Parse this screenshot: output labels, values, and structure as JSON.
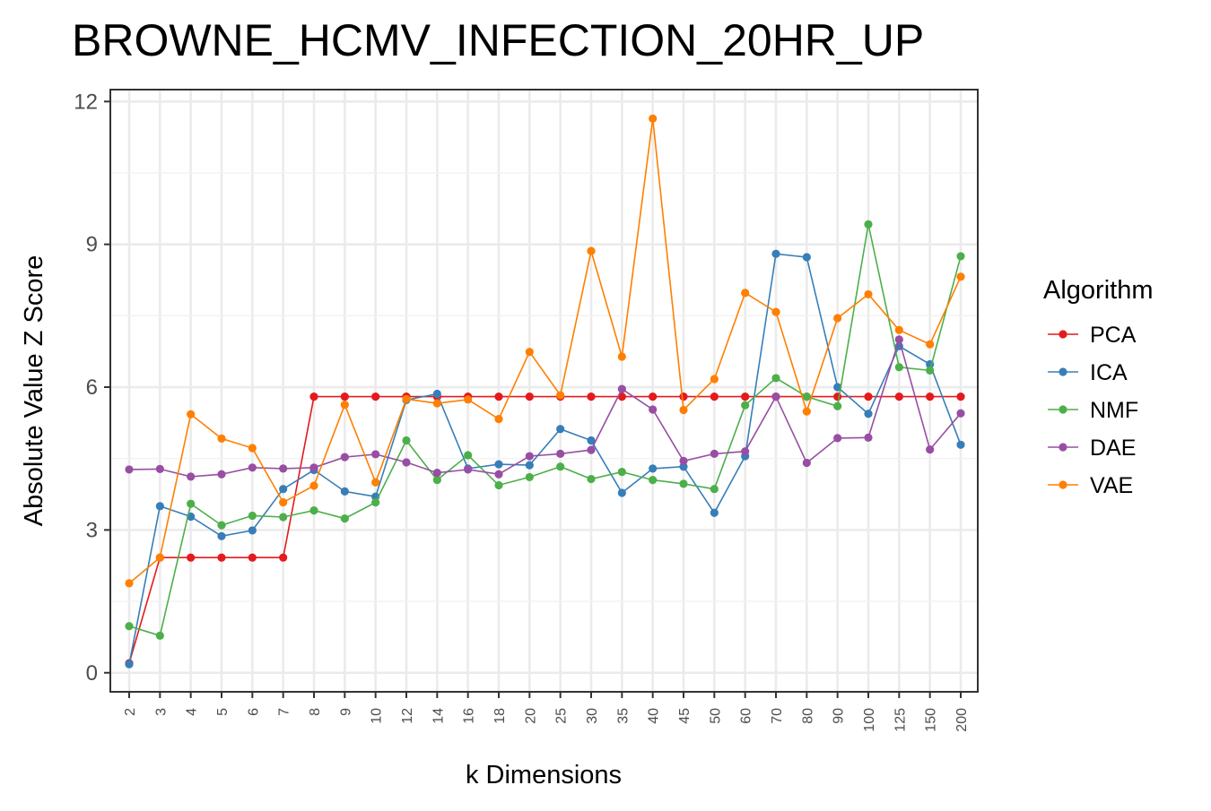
{
  "chart_data": {
    "type": "line",
    "title": "BROWNE_HCMV_INFECTION_20HR_UP",
    "xlabel": "k Dimensions",
    "ylabel": "Absolute Value Z Score",
    "categories": [
      "2",
      "3",
      "4",
      "5",
      "6",
      "7",
      "8",
      "9",
      "10",
      "12",
      "14",
      "16",
      "18",
      "20",
      "25",
      "30",
      "35",
      "40",
      "45",
      "50",
      "60",
      "70",
      "80",
      "90",
      "100",
      "125",
      "150",
      "200"
    ],
    "yticks": [
      "0",
      "3",
      "6",
      "9",
      "12"
    ],
    "ylim": [
      -0.4,
      12.25
    ],
    "grid": true,
    "legend": {
      "title": "Algorithm",
      "position": "right",
      "entries": [
        "PCA",
        "ICA",
        "NMF",
        "DAE",
        "VAE"
      ]
    },
    "series": [
      {
        "name": "PCA",
        "color": "#e41a1c",
        "values": [
          0.2,
          2.42,
          2.42,
          2.42,
          2.42,
          2.42,
          5.8,
          5.8,
          5.8,
          5.8,
          5.8,
          5.8,
          5.8,
          5.8,
          5.8,
          5.8,
          5.8,
          5.8,
          5.8,
          5.8,
          5.8,
          5.8,
          5.8,
          5.8,
          5.8,
          5.8,
          5.8,
          5.8
        ]
      },
      {
        "name": "ICA",
        "color": "#377eb8",
        "values": [
          0.18,
          3.5,
          3.28,
          2.87,
          2.99,
          3.86,
          4.26,
          3.81,
          3.7,
          5.73,
          5.86,
          4.29,
          4.38,
          4.36,
          5.12,
          4.88,
          3.78,
          4.29,
          4.33,
          3.36,
          4.55,
          8.8,
          8.73,
          6.0,
          5.44,
          6.86,
          6.48,
          4.79
        ]
      },
      {
        "name": "NMF",
        "color": "#4daf4a",
        "values": [
          0.98,
          0.78,
          3.55,
          3.1,
          3.3,
          3.27,
          3.41,
          3.24,
          3.58,
          4.88,
          4.05,
          4.57,
          3.94,
          4.11,
          4.33,
          4.07,
          4.22,
          4.05,
          3.97,
          3.86,
          5.62,
          6.19,
          5.8,
          5.6,
          9.42,
          6.42,
          6.35,
          8.75
        ]
      },
      {
        "name": "DAE",
        "color": "#984ea3",
        "values": [
          4.27,
          4.28,
          4.12,
          4.17,
          4.31,
          4.29,
          4.31,
          4.53,
          4.59,
          4.42,
          4.2,
          4.27,
          4.17,
          4.55,
          4.6,
          4.68,
          5.96,
          5.53,
          4.45,
          4.6,
          4.65,
          5.8,
          4.41,
          4.93,
          4.94,
          7.0,
          4.69,
          5.45
        ]
      },
      {
        "name": "VAE",
        "color": "#ff7f00",
        "values": [
          1.88,
          2.42,
          5.43,
          4.92,
          4.72,
          3.58,
          3.93,
          5.63,
          4.0,
          5.75,
          5.66,
          5.74,
          5.33,
          6.74,
          5.83,
          8.86,
          6.64,
          11.64,
          5.52,
          6.17,
          7.98,
          7.58,
          5.49,
          7.45,
          7.95,
          7.2,
          6.9,
          8.32
        ]
      }
    ]
  }
}
